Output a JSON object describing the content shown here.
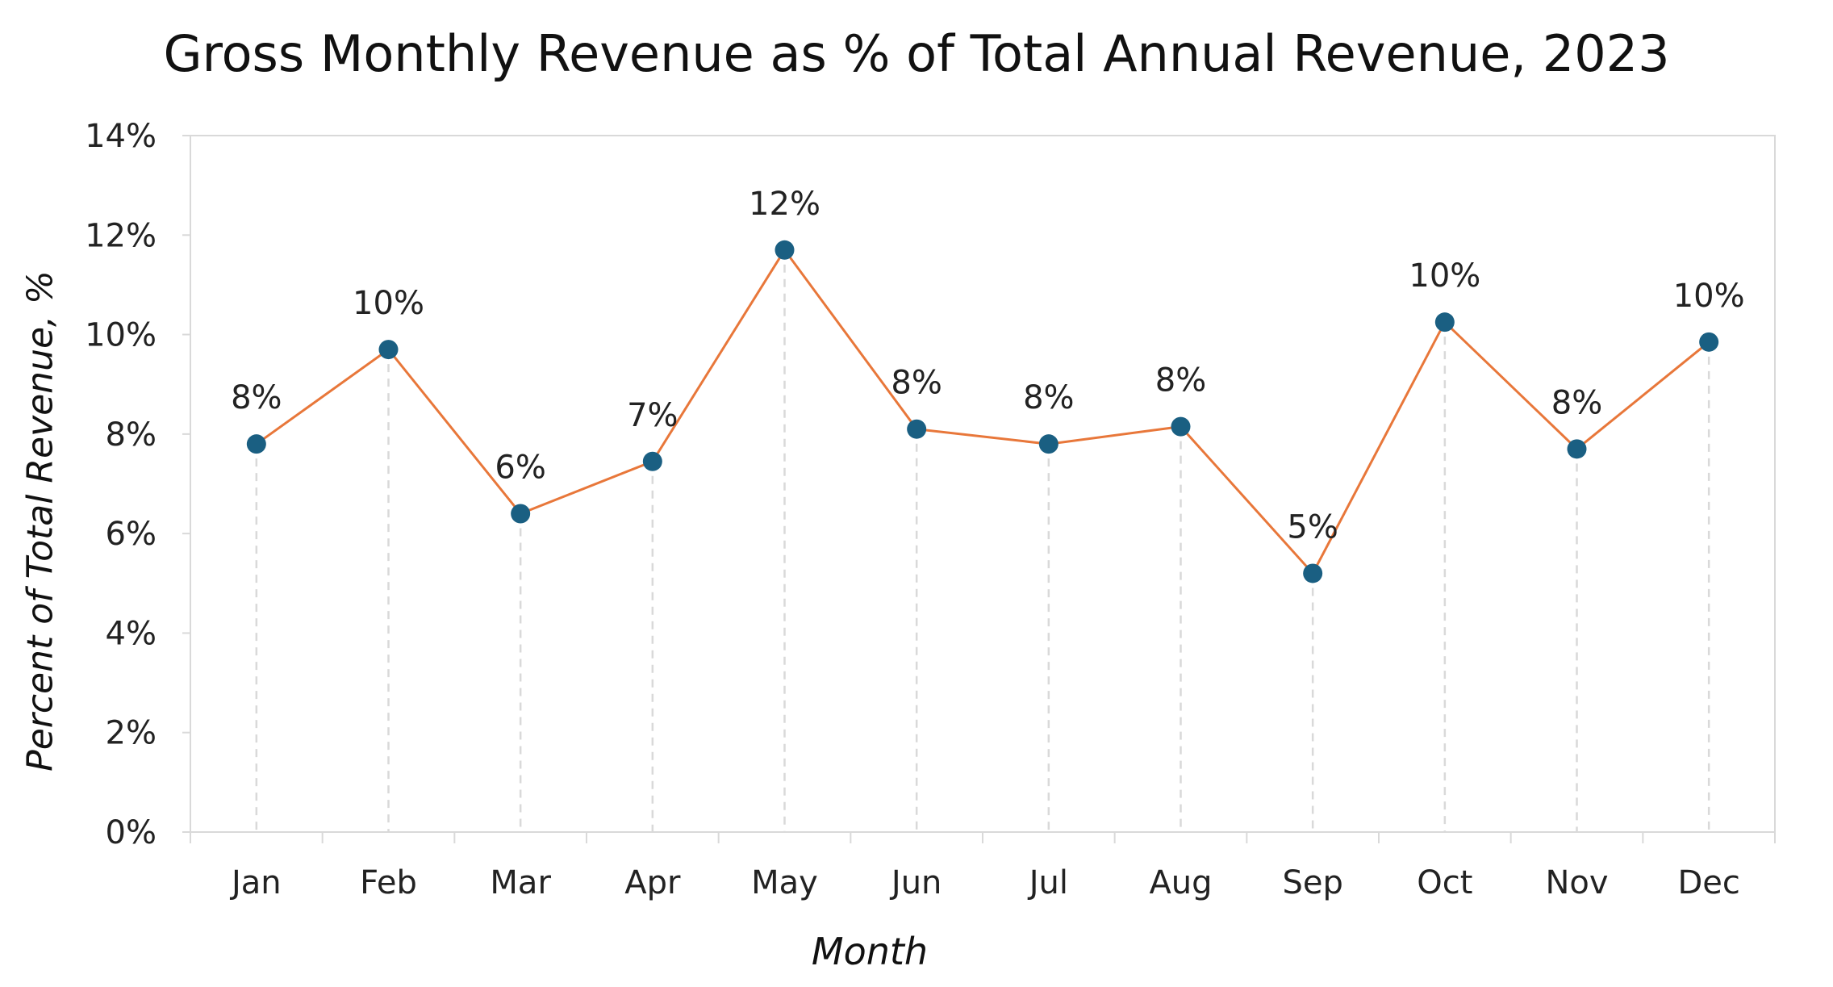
{
  "chart_data": {
    "type": "line",
    "title": "Gross Monthly Revenue as % of Total Annual Revenue, 2023",
    "xlabel": "Month",
    "ylabel": "Percent of Total Revenue, %",
    "categories": [
      "Jan",
      "Feb",
      "Mar",
      "Apr",
      "May",
      "Jun",
      "Jul",
      "Aug",
      "Sep",
      "Oct",
      "Nov",
      "Dec"
    ],
    "series": [
      {
        "values": [
          7.8,
          9.7,
          6.4,
          7.45,
          11.7,
          8.1,
          7.8,
          8.15,
          5.2,
          10.25,
          7.7,
          9.85
        ],
        "data_labels": [
          "8%",
          "10%",
          "6%",
          "7%",
          "12%",
          "8%",
          "8%",
          "8%",
          "5%",
          "10%",
          "8%",
          "10%"
        ]
      }
    ],
    "ylim": [
      0,
      14
    ],
    "yticks": [
      0,
      2,
      4,
      6,
      8,
      10,
      12,
      14
    ],
    "ytick_labels": [
      "0%",
      "2%",
      "4%",
      "6%",
      "8%",
      "10%",
      "12%",
      "14%"
    ],
    "grid": false,
    "drop_lines": true,
    "legend": "none",
    "colors": {
      "line": "#e8773a",
      "marker": "#1a5f82",
      "drop_line": "#d9d9d9",
      "axis": "#d9d9d9"
    }
  }
}
